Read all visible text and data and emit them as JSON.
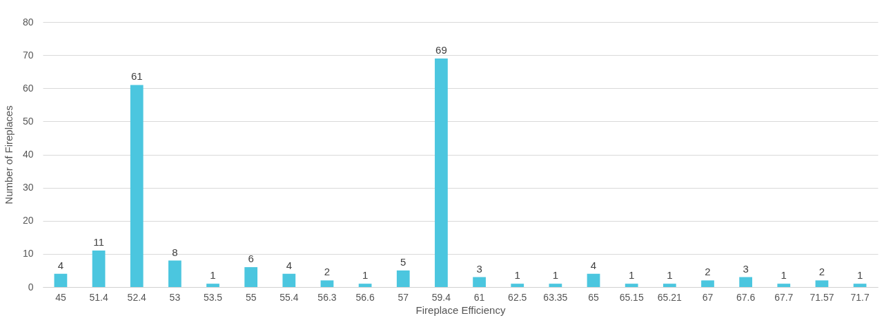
{
  "chart_data": {
    "type": "bar",
    "xlabel": "Fireplace Efficiency",
    "ylabel": "Number of Fireplaces",
    "categories": [
      "45",
      "51.4",
      "52.4",
      "53",
      "53.5",
      "55",
      "55.4",
      "56.3",
      "56.6",
      "57",
      "59.4",
      "61",
      "62.5",
      "63.35",
      "65",
      "65.15",
      "65.21",
      "67",
      "67.6",
      "67.7",
      "71.57",
      "71.7"
    ],
    "values": [
      4,
      11,
      61,
      8,
      1,
      6,
      4,
      2,
      1,
      5,
      69,
      3,
      1,
      1,
      4,
      1,
      1,
      2,
      3,
      1,
      2,
      1
    ],
    "color": "#4bc6df",
    "ylim": [
      0,
      80
    ],
    "yticks": [
      0,
      10,
      20,
      30,
      40,
      50,
      60,
      70,
      80
    ],
    "grid": "y",
    "data_labels": true
  }
}
